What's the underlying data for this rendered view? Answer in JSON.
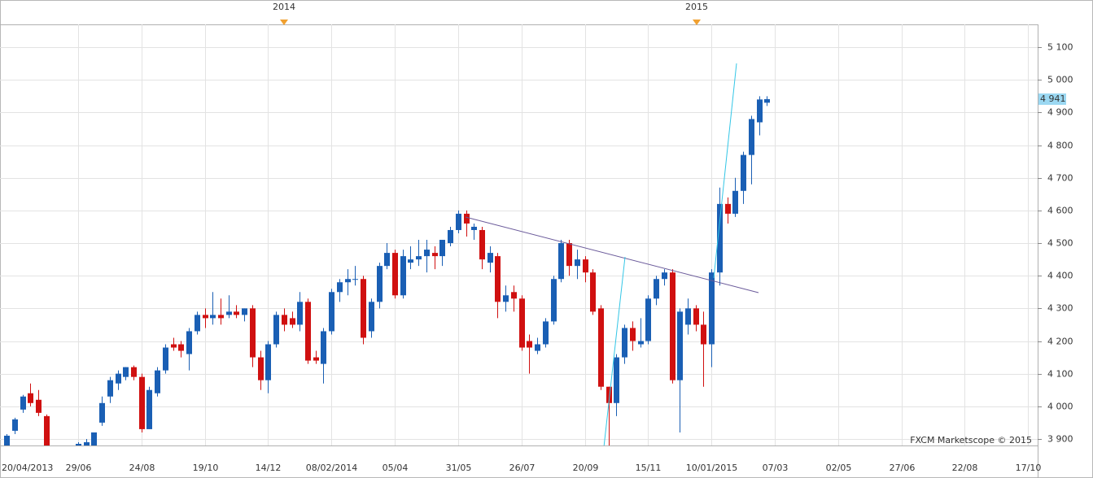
{
  "chart_data": {
    "type": "candlestick",
    "open": [
      3880,
      3925,
      3990,
      4040,
      4020,
      3970,
      3875,
      3830,
      3850,
      3860,
      3880,
      3880,
      3950,
      4030,
      4070,
      4090,
      4120,
      4090,
      3930,
      4040,
      4110,
      4190,
      4190,
      4160,
      4230,
      4280,
      4270,
      4280,
      4280,
      4290,
      4280,
      4300,
      4150,
      4080,
      4190,
      4280,
      4270,
      4250,
      4320,
      4150,
      4130,
      4230,
      4350,
      4380,
      4390,
      4390,
      4230,
      4320,
      4430,
      4470,
      4340,
      4440,
      4450,
      4460,
      4470,
      4460,
      4500,
      4540,
      4590,
      4540,
      4540,
      4440,
      4460,
      4320,
      4350,
      4330,
      4200,
      4170,
      4190,
      4260,
      4390,
      4500,
      4430,
      4450,
      4410,
      4300,
      4060,
      4010,
      4150,
      4240,
      4190,
      4200,
      4330,
      4390,
      4410,
      4080,
      4250,
      4300,
      4250,
      4190,
      4410,
      4620,
      4590,
      4660,
      4770,
      4870,
      4930
    ],
    "high": [
      3915,
      3965,
      4035,
      4070,
      4050,
      3975,
      3880,
      3860,
      3870,
      3890,
      3900,
      3920,
      4030,
      4090,
      4110,
      4120,
      4125,
      4100,
      4060,
      4120,
      4190,
      4210,
      4200,
      4240,
      4290,
      4300,
      4350,
      4330,
      4340,
      4310,
      4300,
      4310,
      4170,
      4200,
      4290,
      4300,
      4290,
      4350,
      4330,
      4170,
      4240,
      4360,
      4390,
      4420,
      4430,
      4400,
      4330,
      4440,
      4500,
      4480,
      4480,
      4490,
      4510,
      4510,
      4490,
      4510,
      4550,
      4600,
      4600,
      4560,
      4550,
      4490,
      4470,
      4370,
      4370,
      4340,
      4220,
      4210,
      4270,
      4400,
      4510,
      4510,
      4480,
      4460,
      4420,
      4310,
      4060,
      4160,
      4250,
      4260,
      4270,
      4340,
      4400,
      4420,
      4420,
      4300,
      4330,
      4310,
      4290,
      4420,
      4670,
      4640,
      4700,
      4780,
      4890,
      4950,
      4950
    ],
    "low": [
      3860,
      3915,
      3980,
      4000,
      3970,
      3870,
      3820,
      3800,
      3830,
      3850,
      3870,
      3870,
      3940,
      4010,
      4050,
      4080,
      4080,
      3920,
      3930,
      4030,
      4100,
      4170,
      4150,
      4110,
      4220,
      4240,
      4250,
      4250,
      4270,
      4270,
      4260,
      4120,
      4050,
      4040,
      4180,
      4230,
      4240,
      4230,
      4130,
      4130,
      4070,
      4220,
      4320,
      4340,
      4370,
      4190,
      4210,
      4300,
      4420,
      4330,
      4330,
      4420,
      4430,
      4410,
      4420,
      4430,
      4490,
      4530,
      4520,
      4510,
      4420,
      4410,
      4270,
      4290,
      4290,
      4170,
      4100,
      4160,
      4180,
      4250,
      4380,
      4400,
      4390,
      4380,
      4280,
      4050,
      3880,
      3970,
      4130,
      4170,
      4180,
      4190,
      4310,
      4370,
      4070,
      3920,
      4220,
      4230,
      4060,
      4120,
      4370,
      4560,
      4580,
      4620,
      4680,
      4830,
      4920
    ],
    "close": [
      3910,
      3960,
      4030,
      4010,
      3980,
      3875,
      3830,
      3850,
      3860,
      3885,
      3890,
      3920,
      4010,
      4080,
      4100,
      4120,
      4090,
      3930,
      4050,
      4110,
      4180,
      4180,
      4170,
      4230,
      4280,
      4270,
      4280,
      4270,
      4290,
      4280,
      4300,
      4150,
      4080,
      4190,
      4280,
      4250,
      4250,
      4320,
      4140,
      4140,
      4230,
      4350,
      4380,
      4390,
      4390,
      4210,
      4320,
      4430,
      4470,
      4340,
      4460,
      4450,
      4460,
      4480,
      4460,
      4510,
      4540,
      4590,
      4560,
      4550,
      4450,
      4470,
      4320,
      4340,
      4330,
      4180,
      4180,
      4190,
      4260,
      4390,
      4500,
      4430,
      4450,
      4410,
      4290,
      4060,
      4010,
      4150,
      4240,
      4200,
      4200,
      4330,
      4390,
      4410,
      4080,
      4290,
      4300,
      4250,
      4190,
      4410,
      4620,
      4590,
      4660,
      4770,
      4880,
      4940,
      4941
    ],
    "up_color": "#1a5fb4",
    "down_color": "#d01010",
    "xlim": [
      -0.853,
      130.2
    ],
    "xticks": [
      {
        "value": -1,
        "label": "20/04/2013"
      },
      {
        "value": 9,
        "label": "29/06"
      },
      {
        "value": 17,
        "label": "24/08"
      },
      {
        "value": 25,
        "label": "19/10"
      },
      {
        "value": 33,
        "label": "14/12"
      },
      {
        "value": 41,
        "label": "08/02/2014"
      },
      {
        "value": 49,
        "label": "05/04"
      },
      {
        "value": 57,
        "label": "31/05"
      },
      {
        "value": 65,
        "label": "26/07"
      },
      {
        "value": 73,
        "label": "20/09"
      },
      {
        "value": 81,
        "label": "15/11"
      },
      {
        "value": 89,
        "label": "10/01/2015"
      },
      {
        "value": 97,
        "label": "07/03"
      },
      {
        "value": 105,
        "label": "02/05"
      },
      {
        "value": 113,
        "label": "27/06"
      },
      {
        "value": 121,
        "label": "22/08"
      },
      {
        "value": 129,
        "label": "17/10"
      }
    ],
    "ylim": [
      3880,
      5170
    ],
    "yticks": [
      {
        "value": 3900,
        "label": "3 900"
      },
      {
        "value": 4000,
        "label": "4 000"
      },
      {
        "value": 4100,
        "label": "4 100"
      },
      {
        "value": 4200,
        "label": "4 200"
      },
      {
        "value": 4300,
        "label": "4 300"
      },
      {
        "value": 4400,
        "label": "4 400"
      },
      {
        "value": 4500,
        "label": "4 500"
      },
      {
        "value": 4600,
        "label": "4 600"
      },
      {
        "value": 4700,
        "label": "4 700"
      },
      {
        "value": 4800,
        "label": "4 800"
      },
      {
        "value": 4900,
        "label": "4 900"
      },
      {
        "value": 5000,
        "label": "5 000"
      },
      {
        "value": 5100,
        "label": "5 100"
      }
    ],
    "last_price": {
      "value": 4941,
      "label": "4 941"
    },
    "year_markers": [
      "2014",
      "2015"
    ],
    "watermark": "FXCM Marketscope © 2015",
    "grid": true
  }
}
